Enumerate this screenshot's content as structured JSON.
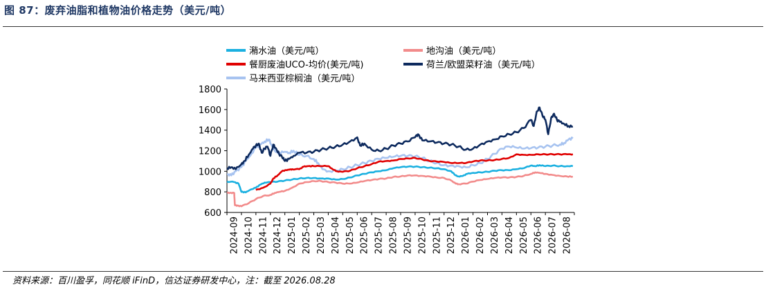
{
  "header": {
    "title": "图 87：废弃油脂和植物油价格走势（美元/吨）"
  },
  "footer": {
    "source": "资料来源：百川盈孚，同花顺 iFinD，信达证券研发中心，注：截至 2026.08.28"
  },
  "chart_data": {
    "type": "line",
    "title": "",
    "xlabel": "",
    "ylabel": "",
    "ylim": [
      600,
      1800
    ],
    "yticks": [
      600,
      800,
      1000,
      1200,
      1400,
      1600,
      1800
    ],
    "grid": false,
    "legend_position": "top",
    "x_start": "2024-09",
    "x_end": "2026-09",
    "categories": [
      "2024-09",
      "2024-10",
      "2024-11",
      "2024-12",
      "2025-01",
      "2025-02",
      "2025-03",
      "2025-04",
      "2025-05",
      "2025-06",
      "2025-07",
      "2025-08",
      "2025-09",
      "2025-10",
      "2025-11",
      "2025-12",
      "2026-01",
      "2026-02",
      "2026-03",
      "2026-04",
      "2026-05",
      "2026-06",
      "2026-07",
      "2026-08"
    ],
    "series": [
      {
        "name": "潲水油（美元/吨）",
        "color": "#1ab0e0",
        "points": [
          [
            0,
            900
          ],
          [
            0.5,
            895
          ],
          [
            0.8,
            880
          ],
          [
            1.0,
            800
          ],
          [
            1.3,
            795
          ],
          [
            1.6,
            820
          ],
          [
            2.0,
            840
          ],
          [
            2.3,
            870
          ],
          [
            2.6,
            890
          ],
          [
            3.0,
            895
          ],
          [
            3.5,
            900
          ],
          [
            4.0,
            910
          ],
          [
            4.5,
            920
          ],
          [
            5.0,
            930
          ],
          [
            5.5,
            935
          ],
          [
            6.0,
            935
          ],
          [
            6.5,
            930
          ],
          [
            7.0,
            930
          ],
          [
            7.5,
            920
          ],
          [
            8.0,
            925
          ],
          [
            8.5,
            940
          ],
          [
            9.0,
            960
          ],
          [
            9.5,
            975
          ],
          [
            10.0,
            990
          ],
          [
            10.5,
            1000
          ],
          [
            11.0,
            1010
          ],
          [
            11.5,
            1030
          ],
          [
            12.0,
            1040
          ],
          [
            12.5,
            1045
          ],
          [
            13.0,
            1045
          ],
          [
            13.5,
            1040
          ],
          [
            14.0,
            1035
          ],
          [
            14.5,
            1030
          ],
          [
            15.0,
            1020
          ],
          [
            15.5,
            1000
          ],
          [
            15.8,
            960
          ],
          [
            16.0,
            950
          ],
          [
            16.3,
            955
          ],
          [
            16.6,
            975
          ],
          [
            17.0,
            985
          ],
          [
            17.5,
            990
          ],
          [
            18.0,
            995
          ],
          [
            18.5,
            1005
          ],
          [
            19.0,
            1010
          ],
          [
            19.5,
            1010
          ],
          [
            20.0,
            1020
          ],
          [
            20.5,
            1030
          ],
          [
            21.0,
            1055
          ],
          [
            21.3,
            1050
          ],
          [
            21.6,
            1060
          ],
          [
            22.0,
            1050
          ],
          [
            22.5,
            1055
          ],
          [
            23.0,
            1050
          ],
          [
            23.5,
            1050
          ],
          [
            23.9,
            1050
          ]
        ]
      },
      {
        "name": "地沟油（美元/吨）",
        "color": "#f28b8b",
        "points": [
          [
            0,
            790
          ],
          [
            0.3,
            790
          ],
          [
            0.5,
            790
          ],
          [
            0.55,
            670
          ],
          [
            0.8,
            665
          ],
          [
            1.0,
            660
          ],
          [
            1.5,
            690
          ],
          [
            2.0,
            730
          ],
          [
            2.5,
            760
          ],
          [
            3.0,
            770
          ],
          [
            3.3,
            790
          ],
          [
            3.6,
            800
          ],
          [
            4.0,
            810
          ],
          [
            4.5,
            840
          ],
          [
            5.0,
            880
          ],
          [
            5.5,
            895
          ],
          [
            6.0,
            905
          ],
          [
            6.5,
            905
          ],
          [
            7.0,
            895
          ],
          [
            7.5,
            890
          ],
          [
            8.0,
            880
          ],
          [
            8.5,
            880
          ],
          [
            9.0,
            890
          ],
          [
            9.5,
            905
          ],
          [
            10.0,
            915
          ],
          [
            10.5,
            925
          ],
          [
            11.0,
            930
          ],
          [
            11.5,
            945
          ],
          [
            12.0,
            950
          ],
          [
            12.5,
            960
          ],
          [
            13.0,
            960
          ],
          [
            13.5,
            955
          ],
          [
            14.0,
            950
          ],
          [
            14.5,
            940
          ],
          [
            15.0,
            935
          ],
          [
            15.5,
            910
          ],
          [
            15.8,
            880
          ],
          [
            16.0,
            875
          ],
          [
            16.5,
            880
          ],
          [
            17.0,
            900
          ],
          [
            17.5,
            915
          ],
          [
            18.0,
            925
          ],
          [
            18.5,
            935
          ],
          [
            19.0,
            940
          ],
          [
            19.5,
            940
          ],
          [
            20.0,
            945
          ],
          [
            20.5,
            955
          ],
          [
            21.0,
            975
          ],
          [
            21.3,
            990
          ],
          [
            21.6,
            985
          ],
          [
            22.0,
            975
          ],
          [
            22.5,
            965
          ],
          [
            23.0,
            955
          ],
          [
            23.5,
            950
          ],
          [
            23.9,
            948
          ]
        ]
      },
      {
        "name": "餐厨废油UCO-均价(美元/吨)",
        "color": "#e00000",
        "points": [
          [
            2.0,
            820
          ],
          [
            2.5,
            840
          ],
          [
            3.0,
            880
          ],
          [
            3.2,
            930
          ],
          [
            3.5,
            960
          ],
          [
            3.8,
            1000
          ],
          [
            4.0,
            1010
          ],
          [
            4.3,
            1015
          ],
          [
            4.5,
            1020
          ],
          [
            5.0,
            1020
          ],
          [
            5.3,
            1045
          ],
          [
            5.6,
            1050
          ],
          [
            6.0,
            1050
          ],
          [
            6.5,
            1050
          ],
          [
            7.0,
            1050
          ],
          [
            7.3,
            1020
          ],
          [
            7.6,
            1000
          ],
          [
            8.0,
            995
          ],
          [
            8.5,
            1005
          ],
          [
            9.0,
            1030
          ],
          [
            9.5,
            1050
          ],
          [
            10.0,
            1070
          ],
          [
            10.5,
            1095
          ],
          [
            11.0,
            1100
          ],
          [
            11.5,
            1105
          ],
          [
            12.0,
            1120
          ],
          [
            12.5,
            1125
          ],
          [
            13.0,
            1130
          ],
          [
            13.5,
            1115
          ],
          [
            14.0,
            1100
          ],
          [
            14.5,
            1095
          ],
          [
            15.0,
            1090
          ],
          [
            15.5,
            1080
          ],
          [
            16.0,
            1080
          ],
          [
            16.5,
            1080
          ],
          [
            17.0,
            1095
          ],
          [
            17.5,
            1105
          ],
          [
            18.0,
            1105
          ],
          [
            18.5,
            1110
          ],
          [
            19.0,
            1120
          ],
          [
            19.5,
            1130
          ],
          [
            20.0,
            1165
          ],
          [
            20.5,
            1160
          ],
          [
            21.0,
            1160
          ],
          [
            21.5,
            1165
          ],
          [
            22.0,
            1165
          ],
          [
            22.5,
            1165
          ],
          [
            23.0,
            1165
          ],
          [
            23.5,
            1165
          ],
          [
            23.9,
            1165
          ]
        ]
      },
      {
        "name": "荷兰/欧盟菜籽油（美元/吨）",
        "color": "#0d2a5e",
        "points": [
          [
            0,
            1030
          ],
          [
            0.3,
            1040
          ],
          [
            0.6,
            1020
          ],
          [
            1.0,
            1070
          ],
          [
            1.2,
            1100
          ],
          [
            1.5,
            1160
          ],
          [
            1.8,
            1220
          ],
          [
            2.0,
            1250
          ],
          [
            2.2,
            1270
          ],
          [
            2.4,
            1180
          ],
          [
            2.6,
            1220
          ],
          [
            2.8,
            1240
          ],
          [
            3.0,
            1150
          ],
          [
            3.2,
            1260
          ],
          [
            3.4,
            1220
          ],
          [
            3.6,
            1170
          ],
          [
            3.8,
            1140
          ],
          [
            4.0,
            1100
          ],
          [
            4.3,
            1120
          ],
          [
            4.6,
            1150
          ],
          [
            5.0,
            1180
          ],
          [
            5.5,
            1180
          ],
          [
            6.0,
            1190
          ],
          [
            6.5,
            1210
          ],
          [
            7.0,
            1225
          ],
          [
            7.5,
            1240
          ],
          [
            8.0,
            1260
          ],
          [
            8.5,
            1290
          ],
          [
            9.0,
            1330
          ],
          [
            9.2,
            1250
          ],
          [
            9.5,
            1270
          ],
          [
            10.0,
            1210
          ],
          [
            10.5,
            1200
          ],
          [
            11.0,
            1220
          ],
          [
            11.5,
            1250
          ],
          [
            12.0,
            1270
          ],
          [
            12.5,
            1290
          ],
          [
            13.0,
            1330
          ],
          [
            13.2,
            1360
          ],
          [
            13.5,
            1300
          ],
          [
            14.0,
            1290
          ],
          [
            14.5,
            1280
          ],
          [
            15.0,
            1270
          ],
          [
            15.5,
            1260
          ],
          [
            16.0,
            1240
          ],
          [
            16.5,
            1210
          ],
          [
            17.0,
            1220
          ],
          [
            17.5,
            1260
          ],
          [
            18.0,
            1290
          ],
          [
            18.5,
            1310
          ],
          [
            19.0,
            1340
          ],
          [
            19.5,
            1360
          ],
          [
            20.0,
            1380
          ],
          [
            20.5,
            1420
          ],
          [
            21.0,
            1500
          ],
          [
            21.2,
            1440
          ],
          [
            21.4,
            1580
          ],
          [
            21.6,
            1620
          ],
          [
            21.8,
            1540
          ],
          [
            22.0,
            1500
          ],
          [
            22.2,
            1360
          ],
          [
            22.4,
            1520
          ],
          [
            22.6,
            1560
          ],
          [
            22.8,
            1500
          ],
          [
            23.0,
            1480
          ],
          [
            23.3,
            1460
          ],
          [
            23.6,
            1440
          ],
          [
            23.9,
            1435
          ]
        ]
      },
      {
        "name": "马来西亚棕榈油（美元/吨）",
        "color": "#a7c3f0",
        "points": [
          [
            0,
            970
          ],
          [
            0.3,
            960
          ],
          [
            0.6,
            1000
          ],
          [
            1.0,
            1040
          ],
          [
            1.3,
            1100
          ],
          [
            1.6,
            1150
          ],
          [
            2.0,
            1230
          ],
          [
            2.3,
            1260
          ],
          [
            2.6,
            1290
          ],
          [
            2.9,
            1310
          ],
          [
            3.1,
            1250
          ],
          [
            3.3,
            1200
          ],
          [
            3.6,
            1180
          ],
          [
            4.0,
            1190
          ],
          [
            4.3,
            1180
          ],
          [
            4.6,
            1200
          ],
          [
            5.0,
            1160
          ],
          [
            5.5,
            1150
          ],
          [
            6.0,
            1120
          ],
          [
            6.3,
            1080
          ],
          [
            6.6,
            1020
          ],
          [
            7.0,
            1000
          ],
          [
            7.5,
            1010
          ],
          [
            8.0,
            1020
          ],
          [
            8.5,
            1040
          ],
          [
            9.0,
            1060
          ],
          [
            9.5,
            1080
          ],
          [
            10.0,
            1100
          ],
          [
            10.5,
            1120
          ],
          [
            11.0,
            1130
          ],
          [
            11.5,
            1140
          ],
          [
            12.0,
            1150
          ],
          [
            12.5,
            1150
          ],
          [
            13.0,
            1145
          ],
          [
            13.5,
            1130
          ],
          [
            14.0,
            1100
          ],
          [
            14.5,
            1080
          ],
          [
            15.0,
            1060
          ],
          [
            15.5,
            1055
          ],
          [
            16.0,
            1050
          ],
          [
            16.5,
            1040
          ],
          [
            17.0,
            1060
          ],
          [
            17.5,
            1080
          ],
          [
            18.0,
            1120
          ],
          [
            18.5,
            1170
          ],
          [
            19.0,
            1220
          ],
          [
            19.5,
            1240
          ],
          [
            20.0,
            1230
          ],
          [
            20.5,
            1220
          ],
          [
            21.0,
            1225
          ],
          [
            21.5,
            1230
          ],
          [
            22.0,
            1240
          ],
          [
            22.5,
            1250
          ],
          [
            23.0,
            1260
          ],
          [
            23.3,
            1275
          ],
          [
            23.6,
            1310
          ],
          [
            23.9,
            1320
          ]
        ]
      }
    ]
  }
}
